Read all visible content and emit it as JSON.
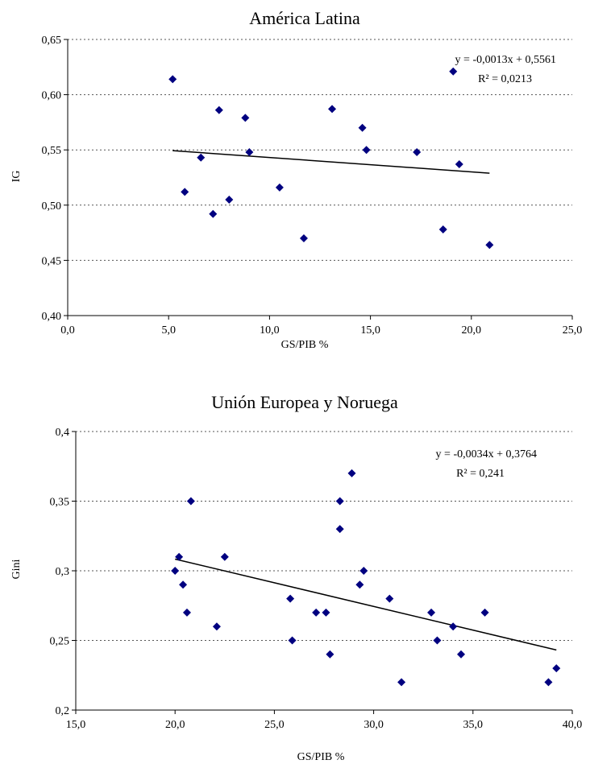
{
  "chart_data": [
    {
      "type": "scatter",
      "title": "América Latina",
      "xlabel": "GS/PIB %",
      "ylabel": "IG",
      "xlim": [
        0,
        25
      ],
      "ylim": [
        0.4,
        0.65
      ],
      "xticks": [
        "0,0",
        "5,0",
        "10,0",
        "15,0",
        "20,0",
        "25,0"
      ],
      "yticks": [
        "0,40",
        "0,45",
        "0,50",
        "0,55",
        "0,60",
        "0,65"
      ],
      "grid": "horizontal dotted",
      "marker_color": "#000080",
      "series": [
        {
          "points": [
            [
              5.2,
              0.614
            ],
            [
              5.8,
              0.512
            ],
            [
              6.6,
              0.543
            ],
            [
              7.2,
              0.492
            ],
            [
              7.5,
              0.586
            ],
            [
              8.0,
              0.505
            ],
            [
              8.8,
              0.579
            ],
            [
              9.0,
              0.548
            ],
            [
              10.5,
              0.516
            ],
            [
              11.7,
              0.47
            ],
            [
              13.1,
              0.587
            ],
            [
              14.6,
              0.57
            ],
            [
              14.8,
              0.55
            ],
            [
              17.3,
              0.548
            ],
            [
              18.6,
              0.478
            ],
            [
              19.1,
              0.621
            ],
            [
              19.4,
              0.537
            ],
            [
              20.9,
              0.464
            ]
          ]
        }
      ],
      "trendline": {
        "x_range": [
          5.2,
          20.9
        ],
        "slope": -0.0013,
        "intercept": 0.5561
      },
      "equation": "y = -0,0013x + 0,5561",
      "r2_label": "R² = 0,0213"
    },
    {
      "type": "scatter",
      "title": "Unión Europea y Noruega",
      "xlabel": "GS/PIB %",
      "ylabel": "Gini",
      "xlim": [
        15,
        40
      ],
      "ylim": [
        0.2,
        0.4
      ],
      "xticks": [
        "15,0",
        "20,0",
        "25,0",
        "30,0",
        "35,0",
        "40,0"
      ],
      "yticks": [
        "0,2",
        "0,25",
        "0,3",
        "0,35",
        "0,4"
      ],
      "grid": "horizontal dotted",
      "marker_color": "#000080",
      "series": [
        {
          "points": [
            [
              20.0,
              0.3
            ],
            [
              20.2,
              0.31
            ],
            [
              20.4,
              0.29
            ],
            [
              20.6,
              0.27
            ],
            [
              20.8,
              0.35
            ],
            [
              22.1,
              0.26
            ],
            [
              22.5,
              0.31
            ],
            [
              25.8,
              0.28
            ],
            [
              25.9,
              0.25
            ],
            [
              27.1,
              0.27
            ],
            [
              27.6,
              0.27
            ],
            [
              27.8,
              0.24
            ],
            [
              28.3,
              0.35
            ],
            [
              28.3,
              0.33
            ],
            [
              28.9,
              0.37
            ],
            [
              29.3,
              0.29
            ],
            [
              29.5,
              0.3
            ],
            [
              30.8,
              0.28
            ],
            [
              31.4,
              0.22
            ],
            [
              32.9,
              0.27
            ],
            [
              33.2,
              0.25
            ],
            [
              34.0,
              0.26
            ],
            [
              34.4,
              0.24
            ],
            [
              35.6,
              0.27
            ],
            [
              38.8,
              0.22
            ],
            [
              39.2,
              0.23
            ]
          ]
        }
      ],
      "trendline": {
        "x_range": [
          20.0,
          39.2
        ],
        "slope": -0.0034,
        "intercept": 0.3764
      },
      "equation": "y = -0,0034x + 0,3764",
      "r2_label": "R² = 0,241"
    }
  ]
}
